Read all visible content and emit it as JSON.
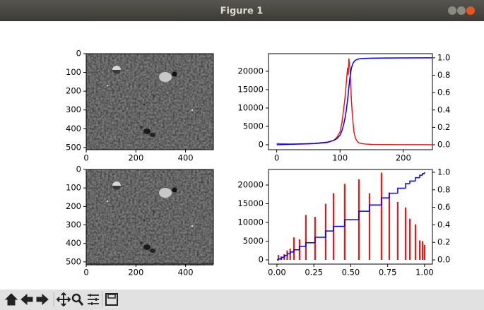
{
  "window": {
    "title": "Figure 1"
  },
  "chart_data": [
    {
      "type": "image",
      "xlim": [
        0,
        512
      ],
      "ylim": [
        512,
        0
      ],
      "xticks": [
        0,
        200,
        400
      ],
      "yticks": [
        0,
        100,
        200,
        300,
        400,
        500
      ]
    },
    {
      "type": "line",
      "x": [
        0,
        20,
        40,
        60,
        80,
        90,
        95,
        100,
        103,
        106,
        108,
        110,
        112,
        113,
        114,
        115,
        116,
        117,
        118,
        120,
        122,
        124,
        126,
        128,
        130,
        135,
        140,
        150,
        170,
        200,
        230,
        245
      ],
      "series": [
        {
          "color": "#e41a1c",
          "values": [
            300,
            200,
            200,
            300,
            600,
            1200,
            2000,
            3500,
            6000,
            10000,
            13000,
            17000,
            21000,
            19000,
            23500,
            22000,
            20000,
            16000,
            12000,
            7000,
            3500,
            2000,
            1200,
            800,
            500,
            300,
            200,
            100,
            50,
            20,
            10,
            0
          ]
        },
        {
          "color": "#0000ff",
          "axis": "y2",
          "values": [
            0,
            0.005,
            0.01,
            0.015,
            0.03,
            0.05,
            0.07,
            0.11,
            0.16,
            0.24,
            0.31,
            0.4,
            0.52,
            0.58,
            0.66,
            0.73,
            0.79,
            0.84,
            0.88,
            0.93,
            0.955,
            0.97,
            0.978,
            0.984,
            0.988,
            0.992,
            0.994,
            0.996,
            0.998,
            0.999,
            1,
            1
          ]
        }
      ],
      "xlim": [
        -13,
        246
      ],
      "ylim": [
        -1350,
        24800
      ],
      "y2lim": [
        -0.057,
        1.048
      ],
      "xticks": [
        0,
        100,
        200
      ],
      "yticks": [
        0,
        5000,
        10000,
        15000,
        20000
      ],
      "y2ticks": [
        {
          "value": 0,
          "label": "0.0"
        },
        0.2,
        0.4,
        0.6,
        0.8,
        {
          "value": 1,
          "label": "1.0"
        }
      ]
    },
    {
      "type": "image",
      "xlim": [
        0,
        512
      ],
      "ylim": [
        512,
        0
      ],
      "xticks": [
        0,
        200,
        400
      ],
      "yticks": [
        0,
        100,
        200,
        300,
        400,
        500
      ]
    },
    {
      "type": "line",
      "x": [
        0.01,
        0.03,
        0.05,
        0.07,
        0.09,
        0.115,
        0.153,
        0.196,
        0.258,
        0.33,
        0.383,
        0.459,
        0.555,
        0.627,
        0.708,
        0.761,
        0.818,
        0.871,
        0.9,
        0.938,
        0.967,
        0.986,
        1
      ],
      "series": [
        {
          "color": "#e41a1c",
          "style": "spikes",
          "values": [
            1300,
            900,
            1500,
            2500,
            3000,
            6000,
            5500,
            12000,
            11500,
            15000,
            17800,
            20300,
            21500,
            17800,
            23300,
            18000,
            15500,
            14000,
            11000,
            9500,
            5200,
            5000,
            4000
          ]
        },
        {
          "color": "#0000ff",
          "axis": "y2",
          "style": "steps",
          "values": [
            0.01,
            0.03,
            0.05,
            0.07,
            0.09,
            0.115,
            0.153,
            0.196,
            0.258,
            0.33,
            0.383,
            0.459,
            0.555,
            0.627,
            0.708,
            0.761,
            0.818,
            0.871,
            0.9,
            0.938,
            0.967,
            0.986,
            1
          ]
        }
      ],
      "xlim": [
        -0.057,
        1.053
      ],
      "ylim": [
        -1130,
        24150
      ],
      "y2lim": [
        -0.048,
        1.032
      ],
      "xticks": [
        {
          "value": 0,
          "label": "0.00"
        },
        0.25,
        {
          "value": 0.5,
          "label": "0.50"
        },
        0.75,
        {
          "value": 1,
          "label": "1.00"
        }
      ],
      "yticks": [
        0,
        5000,
        10000,
        15000,
        20000
      ],
      "y2ticks": [
        {
          "value": 0,
          "label": "0.0"
        },
        0.2,
        0.4,
        0.6,
        0.8,
        {
          "value": 1,
          "label": "1.0"
        }
      ]
    }
  ]
}
